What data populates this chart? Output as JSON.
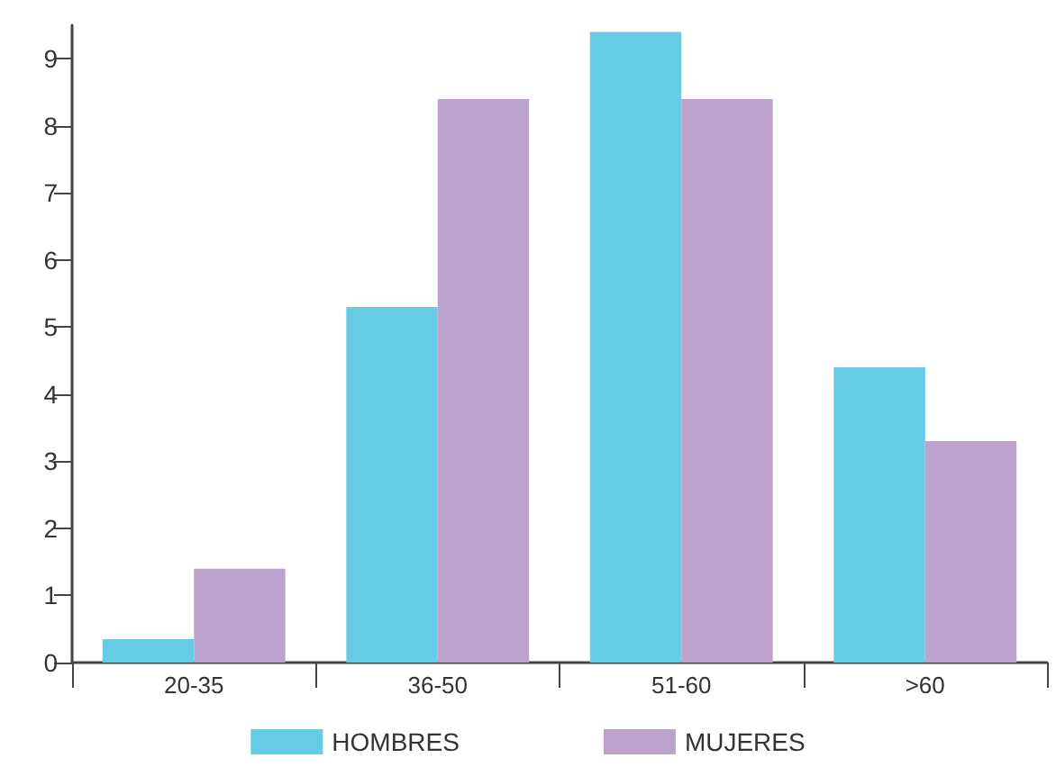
{
  "chart_data": {
    "type": "bar",
    "categories": [
      "20-35",
      "36-50",
      "51-60",
      ">60"
    ],
    "series": [
      {
        "name": "HOMBRES",
        "color": "#66cbe5",
        "values": [
          0.35,
          5.3,
          9.4,
          4.4
        ]
      },
      {
        "name": "MUJERES",
        "color": "#bca3cd",
        "values": [
          1.4,
          8.4,
          8.4,
          3.3
        ]
      }
    ],
    "ylim": [
      0,
      9.5
    ],
    "yticks": [
      0,
      1,
      2,
      3,
      4,
      5,
      6,
      7,
      8,
      9
    ],
    "grid": false,
    "legend": "bottom"
  }
}
